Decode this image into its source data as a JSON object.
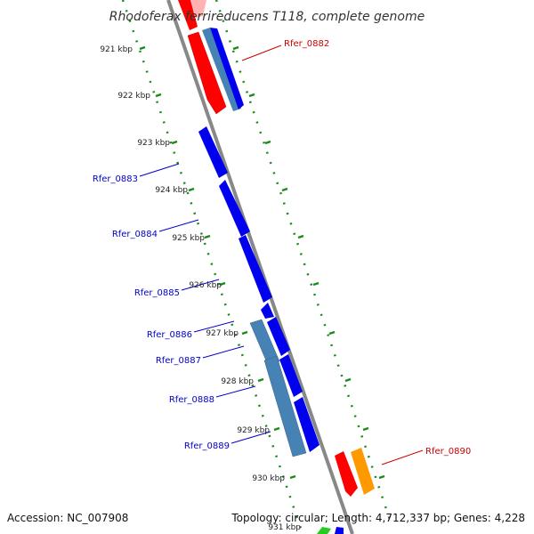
{
  "title": "Rhodoferax ferrireducens T118, complete genome",
  "footer": {
    "accession": "Accession: NC_007908",
    "topology": "Topology: circular; Length: 4,712,337 bp; Genes: 4,228"
  },
  "ticks": [
    "921 kbp",
    "922 kbp",
    "923 kbp",
    "924 kbp",
    "925 kbp",
    "926 kbp",
    "927 kbp",
    "928 kbp",
    "929 kbp",
    "930 kbp",
    "931 kbp"
  ],
  "genes": [
    {
      "label": "Rfer_0882",
      "side": "right"
    },
    {
      "label": "Rfer_0883",
      "side": "left"
    },
    {
      "label": "Rfer_0884",
      "side": "left"
    },
    {
      "label": "Rfer_0885",
      "side": "left"
    },
    {
      "label": "Rfer_0886",
      "side": "left"
    },
    {
      "label": "Rfer_0887",
      "side": "left"
    },
    {
      "label": "Rfer_0888",
      "side": "left"
    },
    {
      "label": "Rfer_0889",
      "side": "left"
    },
    {
      "label": "Rfer_0890",
      "side": "right"
    }
  ],
  "colors": {
    "backbone": "#888888",
    "tick": "#1a8a1a",
    "cds": "#0000ee",
    "rna": "#ff0000",
    "other": "#ff9900",
    "steel": "#4682b4",
    "label_left": "#0000cc",
    "label_right": "#cc0000"
  }
}
